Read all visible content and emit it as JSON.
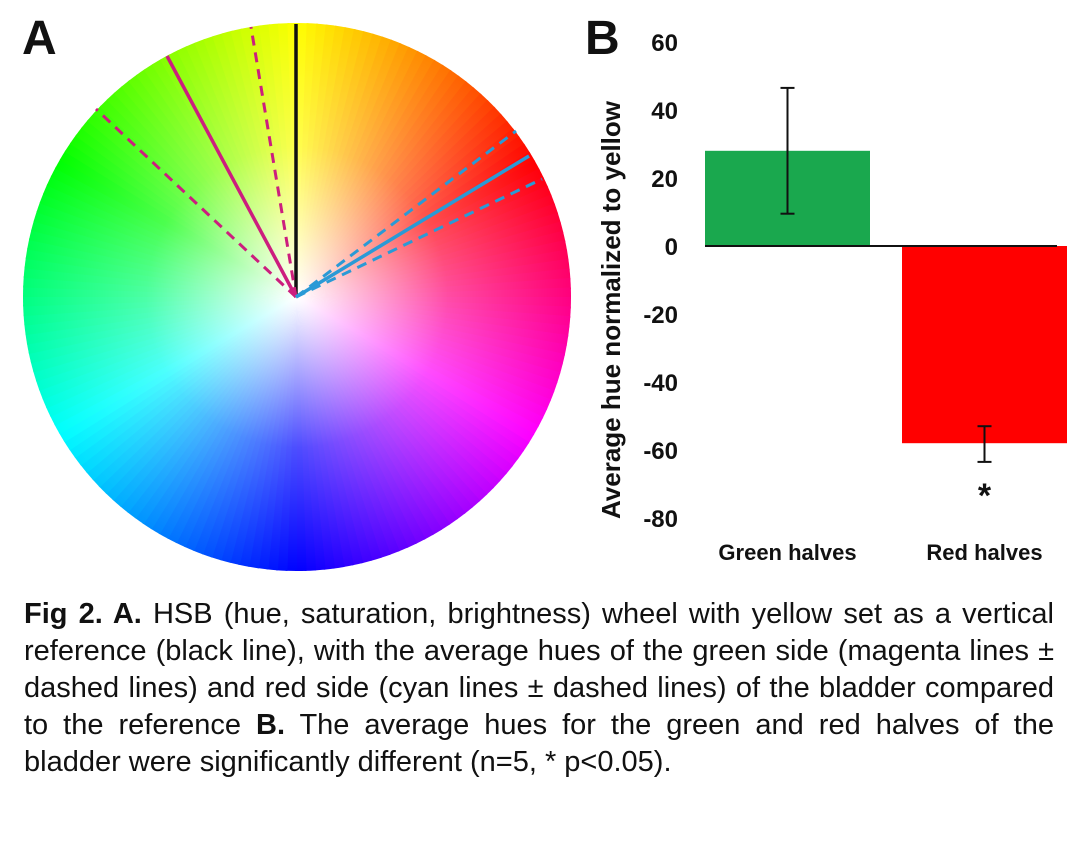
{
  "panels": {
    "a_label": "A",
    "b_label": "B"
  },
  "wheel": {
    "reference_hue": "yellow",
    "reference_line_color": "#111111",
    "green_side_line_color": "#cc1e7e",
    "red_side_line_color": "#2a9ad6"
  },
  "chart_data": {
    "type": "bar",
    "categories": [
      "Green halves",
      "Red halves"
    ],
    "values": [
      28,
      -58
    ],
    "error_low": [
      9.5,
      -63.5
    ],
    "error_high": [
      46.5,
      -53
    ],
    "colors": [
      "#1aa84e",
      "#ff0000"
    ],
    "ylabel": "Average hue normalized to yellow",
    "ylim": [
      -80,
      60
    ],
    "yticks": [
      "60",
      "40",
      "20",
      "0",
      "-20",
      "-40",
      "-60",
      "-80"
    ],
    "ytick_values": [
      60,
      40,
      20,
      0,
      -20,
      -40,
      -60,
      -80
    ],
    "significance_marker": "*",
    "significance_category": "Red halves",
    "grid": false
  },
  "caption": {
    "fig_label": "Fig 2. A.",
    "part_a": " HSB (hue, saturation, brightness) wheel with yellow set as a vertical reference (black line), with the average hues of the green side (magenta lines ± dashed lines) and red  side (cyan lines ± dashed lines) of the bladder compared to the reference ",
    "b_label": "B.",
    "part_b": " The average hues for the green and red halves of the bladder were significantly different (n=5, * p<0.05)."
  }
}
